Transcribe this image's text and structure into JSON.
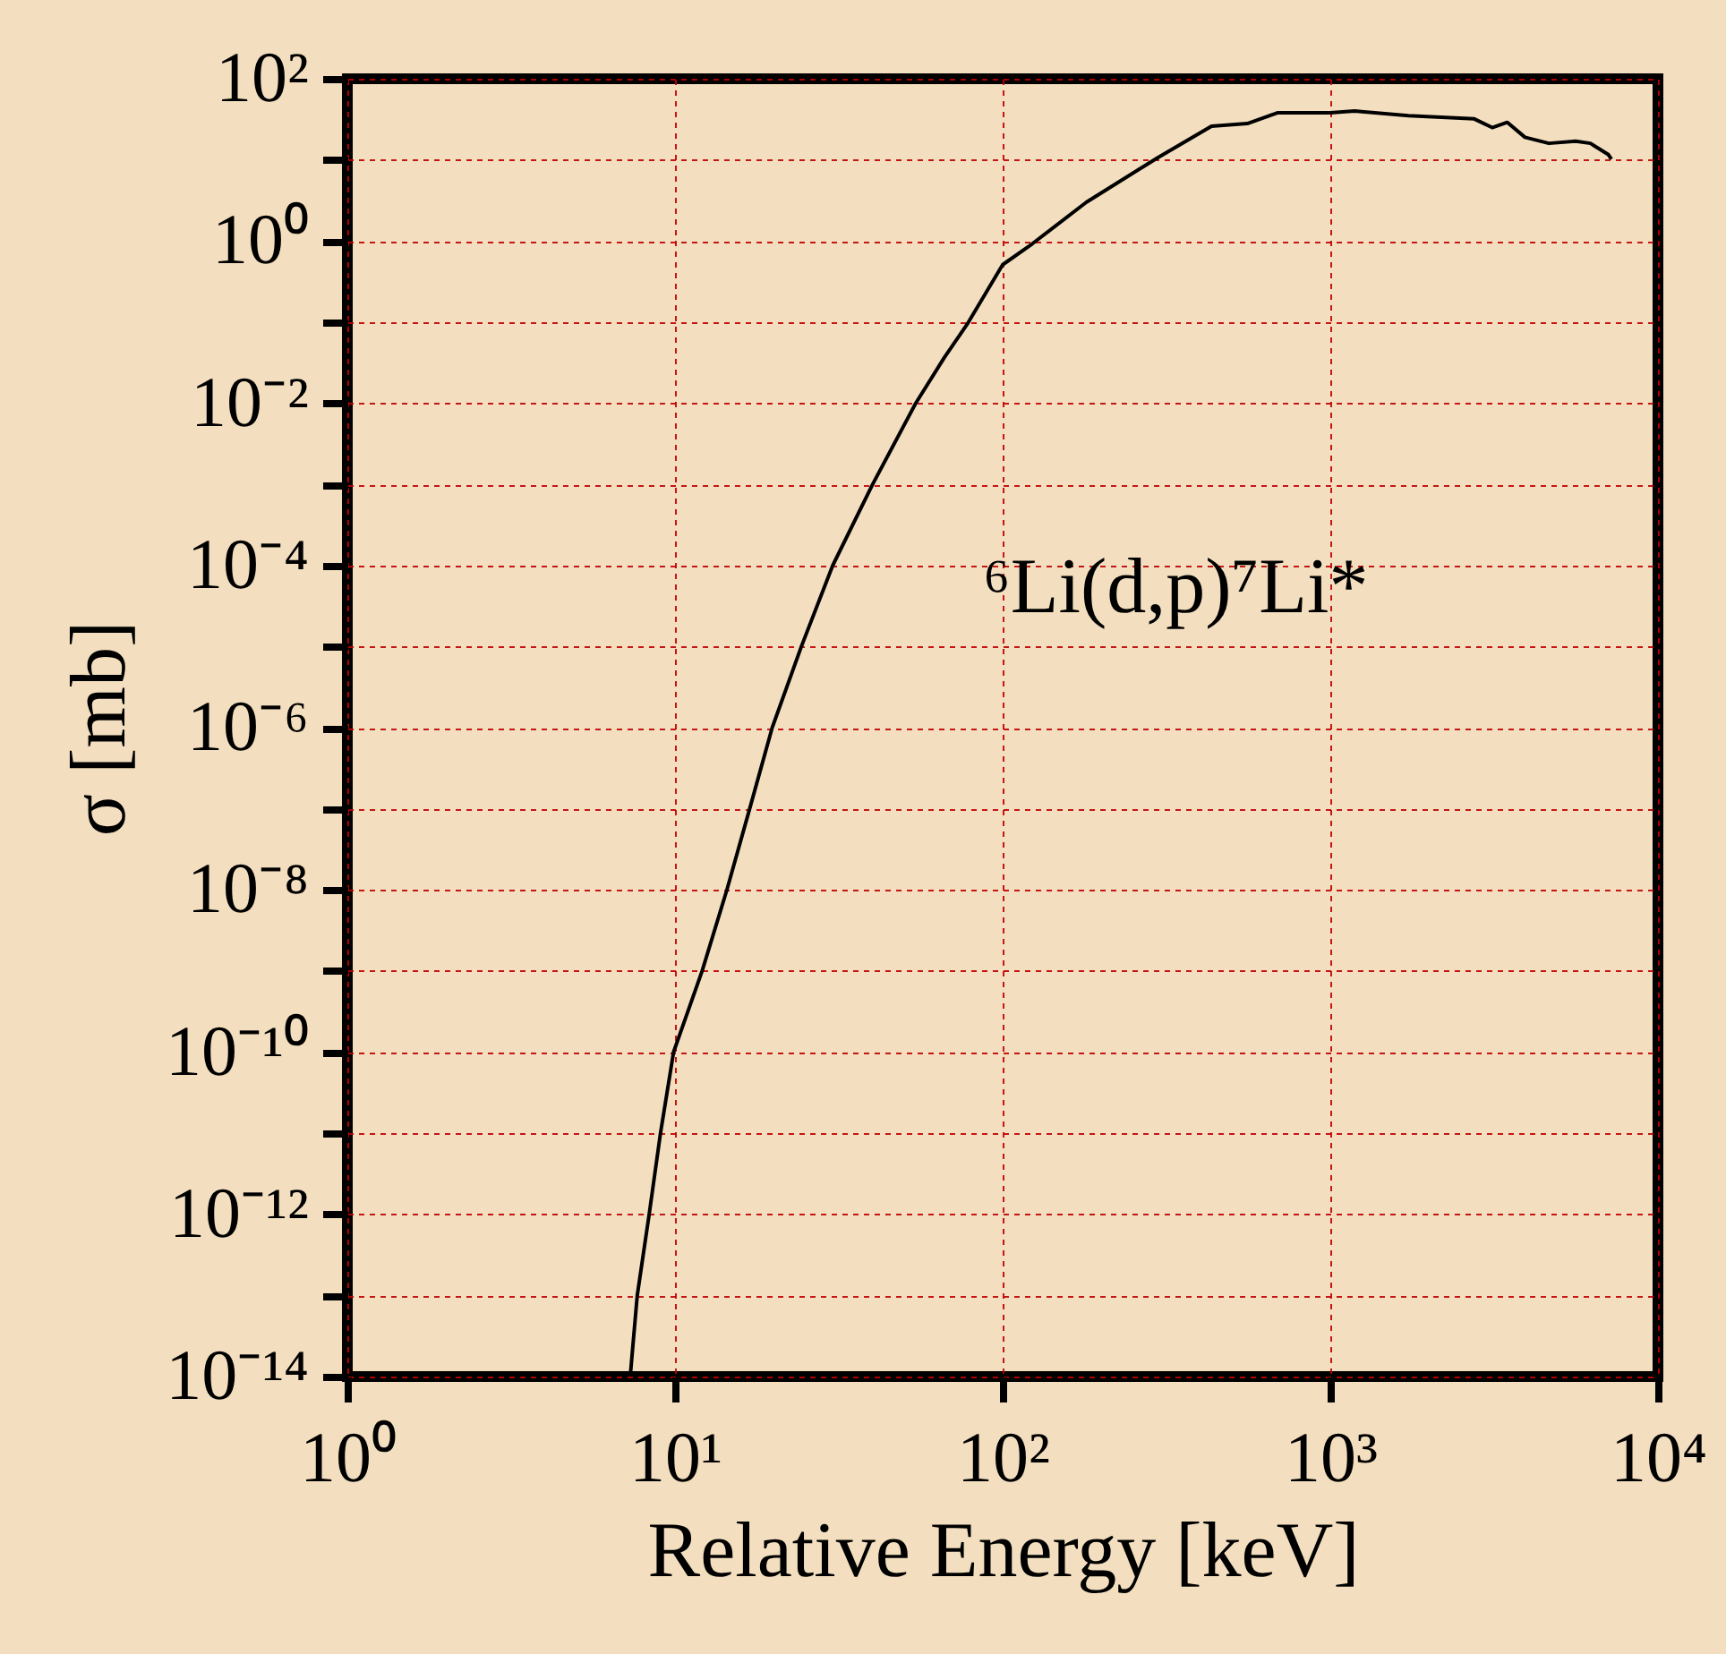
{
  "chart_data": {
    "type": "line",
    "xlabel": "Relative Energy [keV]",
    "ylabel": "σ [mb]",
    "log": "xy",
    "grid": true,
    "marker": "none",
    "line_style": "solid",
    "annotations": [
      "⁶Li(d,p)⁷Li*"
    ],
    "xlim": [
      1,
      10000
    ],
    "ylim": [
      1e-14,
      100
    ],
    "xticks": [
      {
        "value": 1,
        "label": "10⁰"
      },
      {
        "value": 10,
        "label": "10¹"
      },
      {
        "value": 100,
        "label": "10²"
      },
      {
        "value": 1000,
        "label": "10³"
      },
      {
        "value": 10000,
        "label": "10⁴"
      }
    ],
    "yticks": [
      {
        "value": 1e-14,
        "label": "10⁻¹⁴"
      },
      {
        "value": 1e-13,
        "label": null
      },
      {
        "value": 1e-12,
        "label": "10⁻¹²"
      },
      {
        "value": 1e-11,
        "label": null
      },
      {
        "value": 1e-10,
        "label": "10⁻¹⁰"
      },
      {
        "value": 1e-09,
        "label": null
      },
      {
        "value": 1e-08,
        "label": "10⁻⁸"
      },
      {
        "value": 1e-07,
        "label": null
      },
      {
        "value": 1e-06,
        "label": "10⁻⁶"
      },
      {
        "value": 1e-05,
        "label": null
      },
      {
        "value": 0.0001,
        "label": "10⁻⁴"
      },
      {
        "value": 0.001,
        "label": null
      },
      {
        "value": 0.01,
        "label": "10⁻²"
      },
      {
        "value": 0.1,
        "label": null
      },
      {
        "value": 1,
        "label": "10⁰"
      },
      {
        "value": 10,
        "label": null
      },
      {
        "value": 100,
        "label": "10²"
      }
    ],
    "series": [
      {
        "color": "#000000",
        "x": [
          7.3,
          7.67,
          8.34,
          9.03,
          9.9,
          12.1,
          14.4,
          16.9,
          19.8,
          24.3,
          30.3,
          40.1,
          54.3,
          66.4,
          77.8,
          100,
          123,
          180,
          298,
          434,
          558,
          689,
          1000,
          1188,
          1733,
          2750,
          3120,
          3470,
          3927,
          4645,
          5610,
          6220,
          7060,
          7210
        ],
        "values": [
          1e-14,
          1e-13,
          1e-12,
          1e-11,
          1e-10,
          1e-09,
          1e-08,
          1e-07,
          1e-06,
          1e-05,
          0.0001,
          0.001,
          0.01,
          0.0367,
          0.093,
          0.51,
          0.92,
          3.0,
          10.7,
          26,
          28,
          38,
          38,
          40,
          35,
          32,
          25,
          29,
          19,
          16,
          17,
          16,
          11.6,
          10.2
        ]
      }
    ]
  }
}
